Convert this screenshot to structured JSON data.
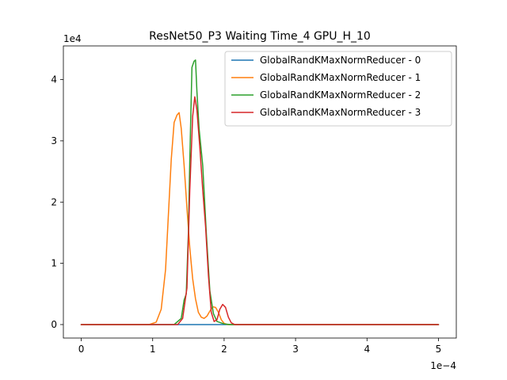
{
  "chart_data": {
    "type": "line",
    "title": "ResNet50_P3 Waiting Time_4 GPU_H_10",
    "xlabel": "",
    "ylabel": "",
    "x_offset_label": "1e−4",
    "y_offset_label": "1e4",
    "xlim": [
      -0.25,
      5.25
    ],
    "ylim": [
      -0.22,
      4.55
    ],
    "x_ticks": [
      0,
      1,
      2,
      3,
      4,
      5
    ],
    "x_tick_labels": [
      "0",
      "1",
      "2",
      "3",
      "4",
      "5"
    ],
    "y_ticks": [
      0,
      1,
      2,
      3,
      4
    ],
    "y_tick_labels": [
      "0",
      "1",
      "2",
      "3",
      "4"
    ],
    "grid": false,
    "legend_position": "top-right",
    "series": [
      {
        "name": "GlobalRandKMaxNormReducer - 0",
        "color": "#1f77b4",
        "x": [
          0,
          5
        ],
        "y": [
          0,
          0
        ]
      },
      {
        "name": "GlobalRandKMaxNormReducer - 1",
        "color": "#ff7f0e",
        "x": [
          0,
          0.95,
          1.05,
          1.12,
          1.18,
          1.22,
          1.26,
          1.3,
          1.34,
          1.37,
          1.4,
          1.44,
          1.48,
          1.52,
          1.56,
          1.6,
          1.64,
          1.68,
          1.72,
          1.76,
          1.8,
          1.84,
          1.88,
          1.92,
          1.96,
          2.0,
          2.05,
          2.1,
          5
        ],
        "y": [
          0,
          0,
          0.04,
          0.25,
          0.9,
          1.8,
          2.7,
          3.3,
          3.42,
          3.46,
          3.2,
          2.6,
          1.9,
          1.25,
          0.75,
          0.42,
          0.2,
          0.12,
          0.1,
          0.14,
          0.22,
          0.29,
          0.28,
          0.2,
          0.08,
          0.02,
          0,
          0,
          0
        ]
      },
      {
        "name": "GlobalRandKMaxNormReducer - 2",
        "color": "#2ca02c",
        "x": [
          0,
          1.3,
          1.4,
          1.44,
          1.47,
          1.5,
          1.52,
          1.55,
          1.58,
          1.6,
          1.62,
          1.65,
          1.7,
          1.75,
          1.8,
          1.85,
          1.9,
          2.0,
          2.1,
          5
        ],
        "y": [
          0,
          0,
          0.1,
          0.4,
          0.5,
          1.5,
          2.7,
          4.2,
          4.3,
          4.32,
          3.8,
          3.2,
          2.6,
          1.5,
          0.55,
          0.18,
          0.05,
          0.01,
          0,
          0
        ]
      },
      {
        "name": "GlobalRandKMaxNormReducer - 3",
        "color": "#d62728",
        "x": [
          0,
          1.35,
          1.42,
          1.48,
          1.52,
          1.56,
          1.59,
          1.62,
          1.66,
          1.7,
          1.74,
          1.78,
          1.82,
          1.86,
          1.9,
          1.94,
          1.98,
          2.02,
          2.06,
          2.1,
          2.15,
          5
        ],
        "y": [
          0,
          0,
          0.1,
          0.6,
          2.2,
          3.4,
          3.72,
          3.5,
          2.9,
          2.2,
          1.6,
          0.8,
          0.2,
          0.05,
          0.08,
          0.25,
          0.33,
          0.28,
          0.12,
          0.03,
          0,
          0
        ]
      }
    ]
  }
}
